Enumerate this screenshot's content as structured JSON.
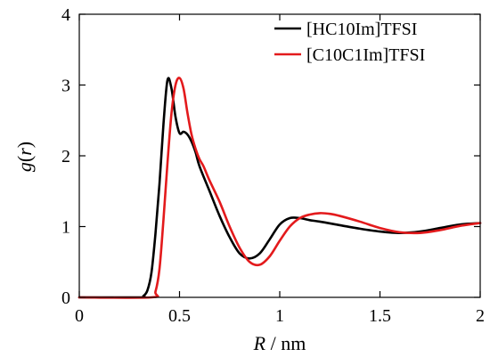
{
  "chart_data": {
    "type": "line",
    "title": "",
    "xlabel_var": "R",
    "xlabel_unit": " / nm",
    "ylabel_var": "g",
    "ylabel_paren_open": "(",
    "ylabel_arg": "r",
    "ylabel_paren_close": ")",
    "xlim": [
      0,
      2
    ],
    "ylim": [
      0,
      4
    ],
    "xticks": [
      0,
      0.5,
      1,
      1.5,
      2
    ],
    "xtick_labels": [
      "0",
      "0.5",
      "1",
      "1.5",
      "2"
    ],
    "yticks": [
      0,
      1,
      2,
      3,
      4
    ],
    "ytick_labels": [
      "0",
      "1",
      "2",
      "3",
      "4"
    ],
    "grid": false,
    "legend_position": "top-right",
    "series": [
      {
        "name": "[HC10Im]TFSI",
        "color": "#000000",
        "x": [
          0,
          0.3,
          0.32,
          0.34,
          0.36,
          0.38,
          0.4,
          0.42,
          0.44,
          0.46,
          0.48,
          0.5,
          0.52,
          0.54,
          0.56,
          0.58,
          0.6,
          0.65,
          0.7,
          0.75,
          0.8,
          0.85,
          0.9,
          0.95,
          1.0,
          1.05,
          1.1,
          1.15,
          1.2,
          1.3,
          1.4,
          1.5,
          1.6,
          1.7,
          1.8,
          1.9,
          2.0
        ],
        "y": [
          0,
          0,
          0.02,
          0.1,
          0.35,
          0.9,
          1.6,
          2.45,
          3.07,
          2.95,
          2.55,
          2.32,
          2.34,
          2.3,
          2.2,
          2.05,
          1.85,
          1.5,
          1.15,
          0.85,
          0.62,
          0.55,
          0.62,
          0.82,
          1.03,
          1.12,
          1.12,
          1.09,
          1.07,
          1.02,
          0.97,
          0.93,
          0.91,
          0.93,
          0.98,
          1.03,
          1.05
        ]
      },
      {
        "name": "[C10C1Im]TFSI",
        "color": "#e31a1c",
        "x": [
          0,
          0.36,
          0.38,
          0.4,
          0.42,
          0.44,
          0.46,
          0.48,
          0.5,
          0.52,
          0.54,
          0.56,
          0.58,
          0.6,
          0.62,
          0.65,
          0.7,
          0.75,
          0.8,
          0.85,
          0.9,
          0.95,
          1.0,
          1.05,
          1.1,
          1.15,
          1.2,
          1.25,
          1.3,
          1.4,
          1.5,
          1.6,
          1.7,
          1.8,
          1.9,
          2.0
        ],
        "y": [
          0,
          0,
          0.08,
          0.4,
          1.1,
          1.9,
          2.6,
          3.0,
          3.1,
          2.95,
          2.6,
          2.3,
          2.1,
          1.95,
          1.85,
          1.65,
          1.35,
          1.0,
          0.7,
          0.5,
          0.46,
          0.58,
          0.8,
          1.0,
          1.12,
          1.17,
          1.19,
          1.18,
          1.15,
          1.07,
          0.98,
          0.92,
          0.91,
          0.95,
          1.01,
          1.05
        ]
      }
    ]
  }
}
